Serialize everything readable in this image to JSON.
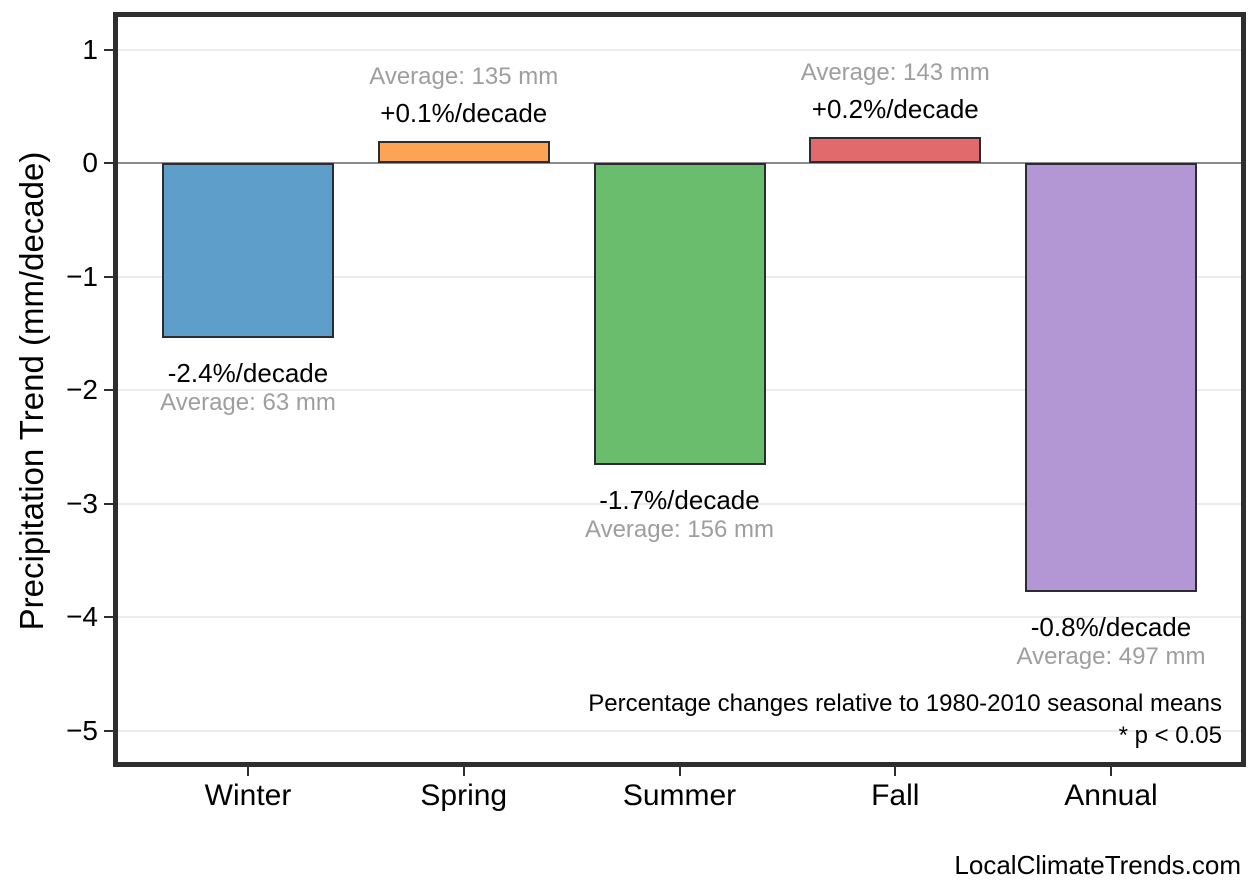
{
  "chart_data": {
    "type": "bar",
    "categories": [
      "Winter",
      "Spring",
      "Summer",
      "Fall",
      "Annual"
    ],
    "values": [
      -1.54,
      0.19,
      -2.66,
      0.23,
      -3.78
    ],
    "series": [
      {
        "name": "Precipitation trend (mm/decade)",
        "values": [
          -1.54,
          0.19,
          -2.66,
          0.23,
          -3.78
        ]
      }
    ],
    "bar_labels": [
      {
        "percent": "-2.4%/decade",
        "average": "Average: 63 mm"
      },
      {
        "percent": "+0.1%/decade",
        "average": "Average: 135 mm"
      },
      {
        "percent": "-1.7%/decade",
        "average": "Average: 156 mm"
      },
      {
        "percent": "+0.2%/decade",
        "average": "Average: 143 mm"
      },
      {
        "percent": "-0.8%/decade",
        "average": "Average: 497 mm"
      }
    ],
    "bar_colors": [
      "#5d9ecb",
      "#fca454",
      "#69bd6c",
      "#e16a6c",
      "#b297d4"
    ],
    "bar_edge_color": "#2b2b33",
    "title": "",
    "xlabel": "",
    "ylabel": "Precipitation Trend (mm/decade)",
    "ylim": [
      -5.3,
      1.3
    ],
    "yticks": [
      1,
      0,
      -1,
      -2,
      -3,
      -4,
      -5
    ],
    "ytick_labels": [
      "1",
      "0",
      "−1",
      "−2",
      "−3",
      "−4",
      "−5"
    ],
    "grid": "horizontal",
    "legend": "none",
    "annotations": [
      "Percentage changes relative to 1980-2010 seasonal means",
      "* p < 0.05"
    ],
    "watermark": "LocalClimateTrends.com"
  },
  "colors": {
    "grid_line": "#ececec",
    "zero_line": "#8a8a8a",
    "frame": "#2e2e2e",
    "percent_text": "#000000",
    "average_text": "#9e9e9e"
  }
}
